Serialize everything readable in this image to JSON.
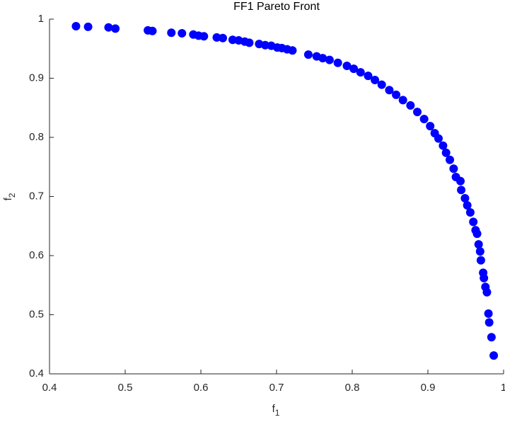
{
  "chart_data": {
    "type": "scatter",
    "title": "FF1 Pareto Front",
    "xlabel": "f1",
    "ylabel": "f2",
    "series": [
      {
        "color": "#0000ff",
        "x": [
          0.435,
          0.451,
          0.478,
          0.487,
          0.53,
          0.536,
          0.561,
          0.575,
          0.59,
          0.597,
          0.604,
          0.621,
          0.629,
          0.642,
          0.65,
          0.658,
          0.664,
          0.677,
          0.685,
          0.693,
          0.701,
          0.707,
          0.714,
          0.721,
          0.742,
          0.753,
          0.761,
          0.77,
          0.781,
          0.793,
          0.802,
          0.811,
          0.821,
          0.83,
          0.839,
          0.849,
          0.858,
          0.867,
          0.877,
          0.886,
          0.895,
          0.903,
          0.909,
          0.914,
          0.92,
          0.924,
          0.929,
          0.934,
          0.937,
          0.943,
          0.944,
          0.949,
          0.952,
          0.956,
          0.96,
          0.963,
          0.965,
          0.967,
          0.969,
          0.97,
          0.973,
          0.974,
          0.976,
          0.978,
          0.98,
          0.981,
          0.984,
          0.987
        ],
        "values": [
          0.988,
          0.987,
          0.986,
          0.984,
          0.981,
          0.98,
          0.977,
          0.976,
          0.974,
          0.972,
          0.971,
          0.969,
          0.968,
          0.965,
          0.964,
          0.962,
          0.96,
          0.958,
          0.956,
          0.955,
          0.952,
          0.951,
          0.949,
          0.947,
          0.94,
          0.937,
          0.934,
          0.931,
          0.926,
          0.921,
          0.916,
          0.91,
          0.904,
          0.897,
          0.889,
          0.88,
          0.872,
          0.863,
          0.854,
          0.843,
          0.831,
          0.819,
          0.807,
          0.798,
          0.786,
          0.774,
          0.762,
          0.747,
          0.733,
          0.726,
          0.711,
          0.697,
          0.685,
          0.673,
          0.657,
          0.643,
          0.637,
          0.619,
          0.607,
          0.592,
          0.571,
          0.562,
          0.547,
          0.538,
          0.502,
          0.487,
          0.462,
          0.431
        ]
      }
    ],
    "xlim": [
      0.4,
      1
    ],
    "xticks": [
      0.4,
      0.5,
      0.6,
      0.7,
      0.8,
      0.9,
      1
    ],
    "ylim": [
      0.4,
      1
    ],
    "yticks": [
      0.4,
      0.5,
      0.6,
      0.7,
      0.8,
      0.9,
      1
    ],
    "grid": false
  }
}
